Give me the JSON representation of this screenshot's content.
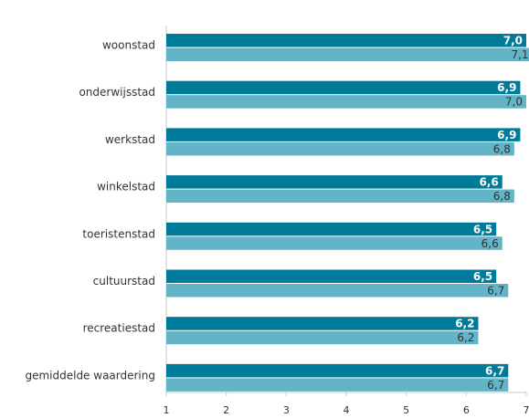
{
  "chart_data": {
    "type": "bar",
    "orientation": "horizontal",
    "categories": [
      "woonstad",
      "onderwijsstad",
      "werkstad",
      "winkelstad",
      "toeristenstad",
      "cultuurstad",
      "recreatiestad",
      "gemiddelde waardering"
    ],
    "series": [
      {
        "values": [
          7.0,
          6.9,
          6.9,
          6.6,
          6.5,
          6.5,
          6.2,
          6.7
        ],
        "labels": [
          "7,0",
          "6,9",
          "6,9",
          "6,6",
          "6,5",
          "6,5",
          "6,2",
          "6,7"
        ],
        "color": "#007A99"
      },
      {
        "values": [
          7.1,
          7.0,
          6.8,
          6.8,
          6.6,
          6.7,
          6.2,
          6.7
        ],
        "labels": [
          "7,1",
          "7,0",
          "6,8",
          "6,8",
          "6,6",
          "6,7",
          "6,2",
          "6,7"
        ],
        "color": "#63B4C6"
      }
    ],
    "xlim": [
      1,
      7
    ],
    "xticks": [
      "1",
      "2",
      "3",
      "4",
      "5",
      "6",
      "7"
    ],
    "grid": false,
    "legend": "none"
  }
}
